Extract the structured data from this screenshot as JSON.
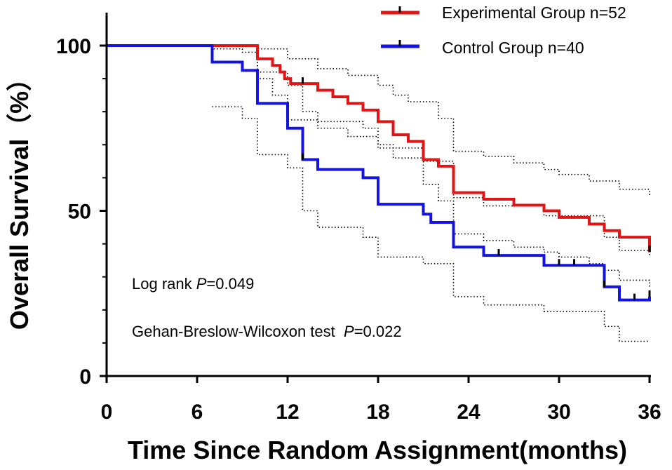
{
  "chart_data": {
    "type": "line",
    "subtype": "kaplan-meier",
    "title": "",
    "xlabel": "Time Since Random Assignment(months)",
    "ylabel": "Overall Survival（%）",
    "xlim": [
      0,
      36
    ],
    "ylim": [
      0,
      100
    ],
    "xticks": [
      "0",
      "6",
      "12",
      "18",
      "24",
      "30",
      "36"
    ],
    "yticks": [
      "0",
      "50",
      "100"
    ],
    "y_minor_ticks": [
      10,
      20,
      30,
      40,
      60,
      70,
      80,
      90
    ],
    "grid": false,
    "legend_position": "top-right",
    "series": [
      {
        "name": "Experimental Group n=52",
        "color": "#e01515",
        "style": "step",
        "x": [
          0,
          10,
          11,
          11.5,
          11.8,
          12.2,
          14,
          15,
          16,
          17,
          18,
          19,
          20,
          21,
          22,
          23,
          25,
          27,
          29,
          30,
          32,
          33,
          34,
          36
        ],
        "y": [
          100,
          96,
          94,
          92,
          90,
          88.5,
          86.5,
          84.5,
          82.5,
          80.5,
          77,
          73,
          71,
          65.5,
          63.5,
          55.5,
          53.5,
          51.7,
          50,
          48,
          46,
          44,
          42,
          37.5
        ],
        "censor_x": [
          13,
          36
        ],
        "censor_y": [
          88.5,
          37.5
        ],
        "ci_upper": {
          "x": [
            0,
            10,
            12,
            14,
            16,
            18,
            19,
            20,
            22,
            23,
            25,
            27,
            29,
            30,
            32,
            34,
            36
          ],
          "y": [
            100,
            99,
            96,
            93,
            91,
            88,
            85,
            83,
            78,
            68,
            66.5,
            64.5,
            62.5,
            61,
            59,
            56.5,
            54.5
          ]
        },
        "ci_lower": {
          "x": [
            0,
            10,
            11,
            12,
            14,
            16,
            18,
            19,
            21,
            22,
            23,
            25,
            27,
            29,
            30,
            32,
            33,
            34,
            36
          ],
          "y": [
            100,
            90,
            85,
            77.5,
            75,
            72.5,
            70,
            66,
            58,
            53,
            43,
            41,
            39,
            37.5,
            36,
            34,
            32,
            29,
            27
          ]
        }
      },
      {
        "name": "Control Group n=40",
        "color": "#1414e0",
        "style": "step",
        "x": [
          0,
          7,
          9,
          10,
          12,
          13,
          14,
          17,
          18,
          21,
          21.5,
          23,
          25,
          29,
          33,
          34,
          36
        ],
        "y": [
          100,
          95,
          92.5,
          82.5,
          75,
          65.5,
          62.5,
          60,
          52,
          49,
          46.5,
          39,
          36.5,
          33.5,
          27,
          23,
          24
        ],
        "censor_x": [
          13,
          26,
          30,
          31,
          33,
          35,
          36
        ],
        "censor_y": [
          65.5,
          36.5,
          33.5,
          33.5,
          27,
          23,
          24
        ],
        "ci_upper": {
          "x": [
            0,
            7,
            9,
            10,
            12,
            13,
            14,
            17,
            18,
            21,
            23,
            25,
            29,
            33,
            34,
            36
          ],
          "y": [
            100,
            99,
            98,
            92,
            88,
            80,
            77,
            75,
            69,
            65,
            54,
            51.5,
            48.5,
            42,
            38,
            36
          ]
        },
        "ci_lower": {
          "x": [
            7,
            9,
            10,
            12,
            13,
            14,
            17,
            18,
            21,
            23,
            25,
            29,
            33,
            34,
            36
          ],
          "y": [
            81.5,
            78,
            67,
            63,
            50,
            45,
            42,
            36,
            34,
            24,
            21.5,
            19.5,
            15,
            10.5,
            10.5
          ]
        }
      }
    ],
    "annotations": [
      {
        "prefix": "Log rank ",
        "p_symbol": "P",
        "value": "=0.049"
      },
      {
        "prefix": "Gehan-Breslow-Wilcoxon test  ",
        "p_symbol": "P",
        "value": "=0.022"
      }
    ]
  }
}
